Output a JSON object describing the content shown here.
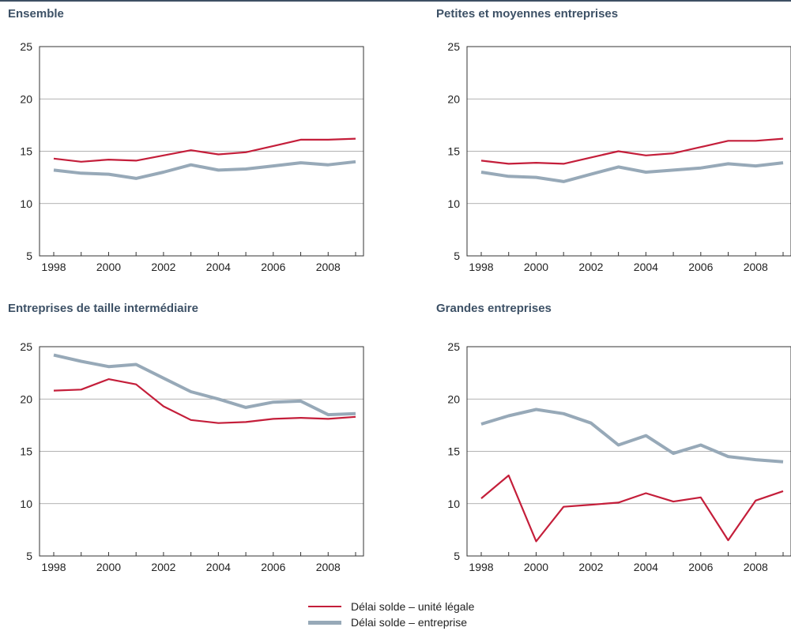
{
  "chart_data": [
    {
      "type": "line",
      "title": "Ensemble",
      "x": [
        1998,
        1999,
        2000,
        2001,
        2002,
        2003,
        2004,
        2005,
        2006,
        2007,
        2008,
        2009
      ],
      "xticks": [
        "1998",
        "2000",
        "2002",
        "2004",
        "2006",
        "2008"
      ],
      "yticks": [
        "5",
        "10",
        "15",
        "20",
        "25"
      ],
      "ylim": [
        5,
        25
      ],
      "grid": true,
      "series": [
        {
          "name": "Délai solde – unité légale",
          "values": [
            14.3,
            14.0,
            14.2,
            14.1,
            14.6,
            15.1,
            14.7,
            14.9,
            15.5,
            16.1,
            16.1,
            16.2
          ]
        },
        {
          "name": "Délai solde – entreprise",
          "values": [
            13.2,
            12.9,
            12.8,
            12.4,
            13.0,
            13.7,
            13.2,
            13.3,
            13.6,
            13.9,
            13.7,
            14.0
          ]
        }
      ]
    },
    {
      "type": "line",
      "title": "Petites et moyennes entreprises",
      "x": [
        1998,
        1999,
        2000,
        2001,
        2002,
        2003,
        2004,
        2005,
        2006,
        2007,
        2008,
        2009
      ],
      "xticks": [
        "1998",
        "2000",
        "2002",
        "2004",
        "2006",
        "2008"
      ],
      "yticks": [
        "5",
        "10",
        "15",
        "20",
        "25"
      ],
      "ylim": [
        5,
        25
      ],
      "grid": true,
      "series": [
        {
          "name": "Délai solde – unité légale",
          "values": [
            14.1,
            13.8,
            13.9,
            13.8,
            14.4,
            15.0,
            14.6,
            14.8,
            15.4,
            16.0,
            16.0,
            16.2
          ]
        },
        {
          "name": "Délai solde – entreprise",
          "values": [
            13.0,
            12.6,
            12.5,
            12.1,
            12.8,
            13.5,
            13.0,
            13.2,
            13.4,
            13.8,
            13.6,
            13.9
          ]
        }
      ]
    },
    {
      "type": "line",
      "title": "Entreprises de taille intermédiaire",
      "x": [
        1998,
        1999,
        2000,
        2001,
        2002,
        2003,
        2004,
        2005,
        2006,
        2007,
        2008,
        2009
      ],
      "xticks": [
        "1998",
        "2000",
        "2002",
        "2004",
        "2006",
        "2008"
      ],
      "yticks": [
        "5",
        "10",
        "15",
        "20",
        "25"
      ],
      "ylim": [
        5,
        25
      ],
      "grid": true,
      "series": [
        {
          "name": "Délai solde – unité légale",
          "values": [
            20.8,
            20.9,
            21.9,
            21.4,
            19.3,
            18.0,
            17.7,
            17.8,
            18.1,
            18.2,
            18.1,
            18.3
          ]
        },
        {
          "name": "Délai solde – entreprise",
          "values": [
            24.2,
            23.6,
            23.1,
            23.3,
            22.0,
            20.7,
            20.0,
            19.2,
            19.7,
            19.8,
            18.5,
            18.6
          ]
        }
      ]
    },
    {
      "type": "line",
      "title": "Grandes entreprises",
      "x": [
        1998,
        1999,
        2000,
        2001,
        2002,
        2003,
        2004,
        2005,
        2006,
        2007,
        2008,
        2009
      ],
      "xticks": [
        "1998",
        "2000",
        "2002",
        "2004",
        "2006",
        "2008"
      ],
      "yticks": [
        "5",
        "10",
        "15",
        "20",
        "25"
      ],
      "ylim": [
        5,
        25
      ],
      "grid": true,
      "series": [
        {
          "name": "Délai solde – unité légale",
          "values": [
            10.5,
            12.7,
            6.4,
            9.7,
            9.9,
            10.1,
            11.0,
            10.2,
            10.6,
            6.5,
            10.3,
            11.2
          ]
        },
        {
          "name": "Délai solde – entreprise",
          "values": [
            17.6,
            18.4,
            19.0,
            18.6,
            17.7,
            15.6,
            16.5,
            14.8,
            15.6,
            14.5,
            14.2,
            14.0
          ]
        }
      ]
    }
  ],
  "legend": {
    "items": [
      {
        "label": "Délai solde – unité légale",
        "color": "#c41e3a"
      },
      {
        "label": "Délai solde – entreprise",
        "color": "#97a9b8"
      }
    ]
  },
  "colors": {
    "series_red": "#c41e3a",
    "series_grey": "#97a9b8",
    "title": "#3d5166",
    "grid": "#999999"
  }
}
